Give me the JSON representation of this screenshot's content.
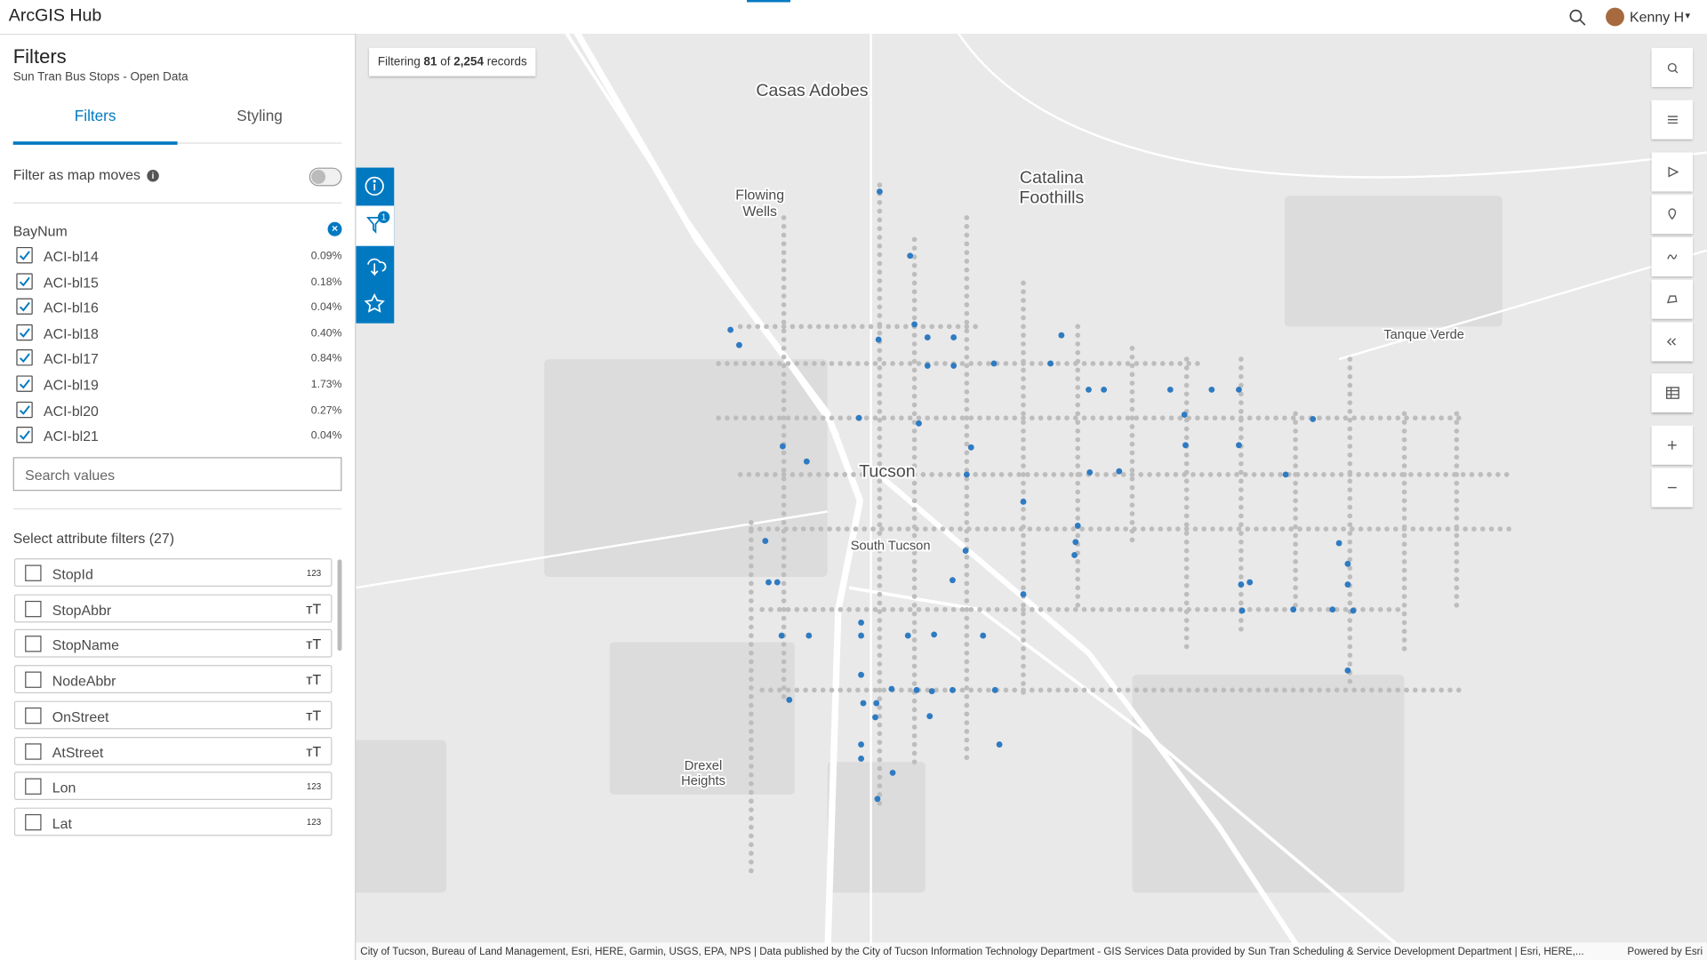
{
  "header": {
    "title": "ArcGIS Hub",
    "user": "Kenny H"
  },
  "panel": {
    "title": "Filters",
    "subtitle": "Sun Tran Bus Stops - Open Data",
    "tabs": [
      "Filters",
      "Styling"
    ],
    "toggle_label": "Filter as map moves",
    "field": "BayNum",
    "values": [
      {
        "name": "ACI-bl14",
        "pct": "0.09%"
      },
      {
        "name": "ACI-bl15",
        "pct": "0.18%"
      },
      {
        "name": "ACI-bl16",
        "pct": "0.04%"
      },
      {
        "name": "ACI-bl18",
        "pct": "0.40%"
      },
      {
        "name": "ACI-bl17",
        "pct": "0.84%"
      },
      {
        "name": "ACI-bl19",
        "pct": "1.73%"
      },
      {
        "name": "ACI-bl20",
        "pct": "0.27%"
      },
      {
        "name": "ACI-bl21",
        "pct": "0.04%"
      }
    ],
    "search_placeholder": "Search values",
    "attr_heading": "Select attribute filters (27)",
    "attributes": [
      {
        "name": "StopId",
        "type": "123"
      },
      {
        "name": "StopAbbr",
        "type": "ᴛT"
      },
      {
        "name": "StopName",
        "type": "ᴛT"
      },
      {
        "name": "NodeAbbr",
        "type": "ᴛT"
      },
      {
        "name": "OnStreet",
        "type": "ᴛT"
      },
      {
        "name": "AtStreet",
        "type": "ᴛT"
      },
      {
        "name": "Lon",
        "type": "123"
      },
      {
        "name": "Lat",
        "type": "123"
      }
    ]
  },
  "map": {
    "status": {
      "prefix": "Filtering",
      "count": "81",
      "of": "of",
      "total": "2,254",
      "suffix": "records"
    },
    "filter_badge": "1",
    "places": [
      {
        "lines": [
          "Casas Adobes"
        ]
      },
      {
        "lines": [
          "Flowing",
          "Wells"
        ]
      },
      {
        "lines": [
          "Catalina",
          "Foothills"
        ]
      },
      {
        "lines": [
          "Tanque Verde"
        ]
      },
      {
        "lines": [
          "Tucson"
        ]
      },
      {
        "lines": [
          "South Tucson"
        ]
      },
      {
        "lines": [
          "Drexel",
          "Heights"
        ]
      }
    ],
    "attribution": "City of Tucson, Bureau of Land Management, Esri, HERE, Garmin, USGS, EPA, NPS | Data published by the City of Tucson Information Technology Department - GIS Services Data provided by Sun Tran Scheduling & Service Development Department | Esri, HERE,...",
    "powered": "Powered by Esri"
  }
}
